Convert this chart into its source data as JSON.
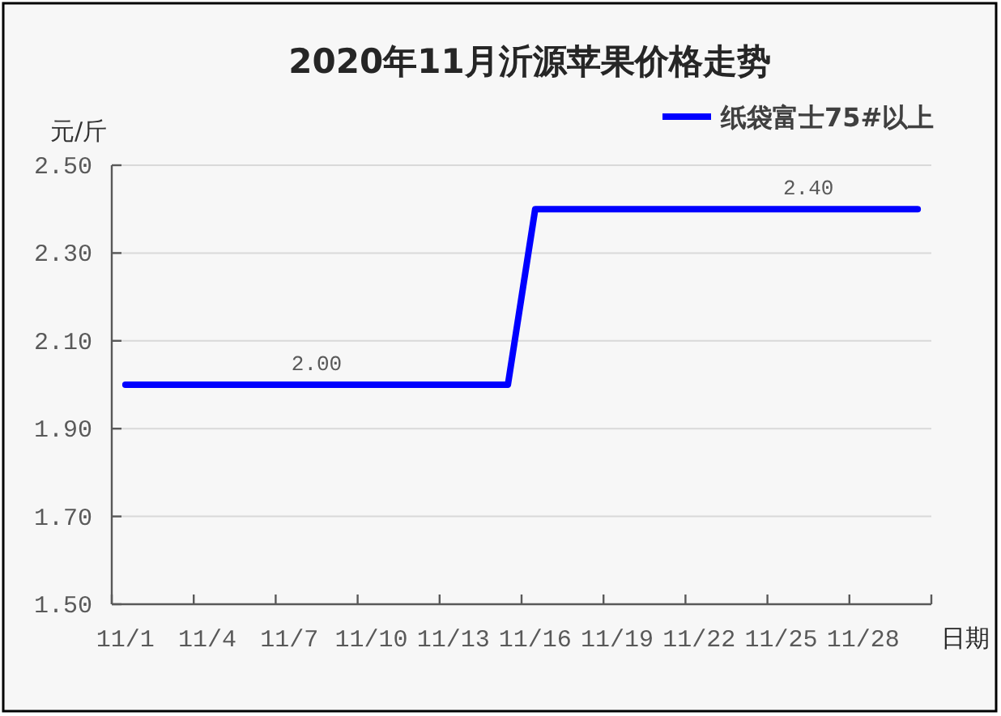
{
  "chart_data": {
    "type": "line",
    "title": "2020年11月沂源苹果价格走势",
    "ylabel": "元/斤",
    "xlabel": "日期",
    "categories": [
      "11/1",
      null,
      null,
      "11/4",
      null,
      null,
      "11/7",
      null,
      null,
      "11/10",
      null,
      null,
      "11/13",
      null,
      null,
      "11/16",
      null,
      null,
      "11/19",
      null,
      null,
      "11/22",
      null,
      null,
      "11/25",
      null,
      null,
      "11/28",
      null,
      null
    ],
    "series": [
      {
        "name": "纸袋富士75#以上",
        "color": "#0000ff",
        "values": [
          2.0,
          2.0,
          2.0,
          2.0,
          2.0,
          2.0,
          2.0,
          2.0,
          2.0,
          2.0,
          2.0,
          2.0,
          2.0,
          2.0,
          2.0,
          2.4,
          2.4,
          2.4,
          2.4,
          2.4,
          2.4,
          2.4,
          2.4,
          2.4,
          2.4,
          2.4,
          2.4,
          2.4,
          2.4,
          2.4
        ],
        "value_labels": [
          null,
          null,
          null,
          null,
          null,
          null,
          null,
          "2.00",
          null,
          null,
          null,
          null,
          null,
          null,
          null,
          null,
          null,
          null,
          null,
          null,
          null,
          null,
          null,
          null,
          null,
          "2.40",
          null,
          null,
          null,
          null
        ]
      }
    ],
    "ylim": [
      1.5,
      2.5
    ],
    "yticks": [
      {
        "value": 1.5,
        "label": "1.50"
      },
      {
        "value": 1.7,
        "label": "1.70"
      },
      {
        "value": 1.9,
        "label": "1.90"
      },
      {
        "value": 2.1,
        "label": "2.10"
      },
      {
        "value": 2.3,
        "label": "2.30"
      },
      {
        "value": 2.5,
        "label": "2.50"
      }
    ],
    "grid": "y",
    "legend": "top right",
    "line_style": "solid"
  }
}
